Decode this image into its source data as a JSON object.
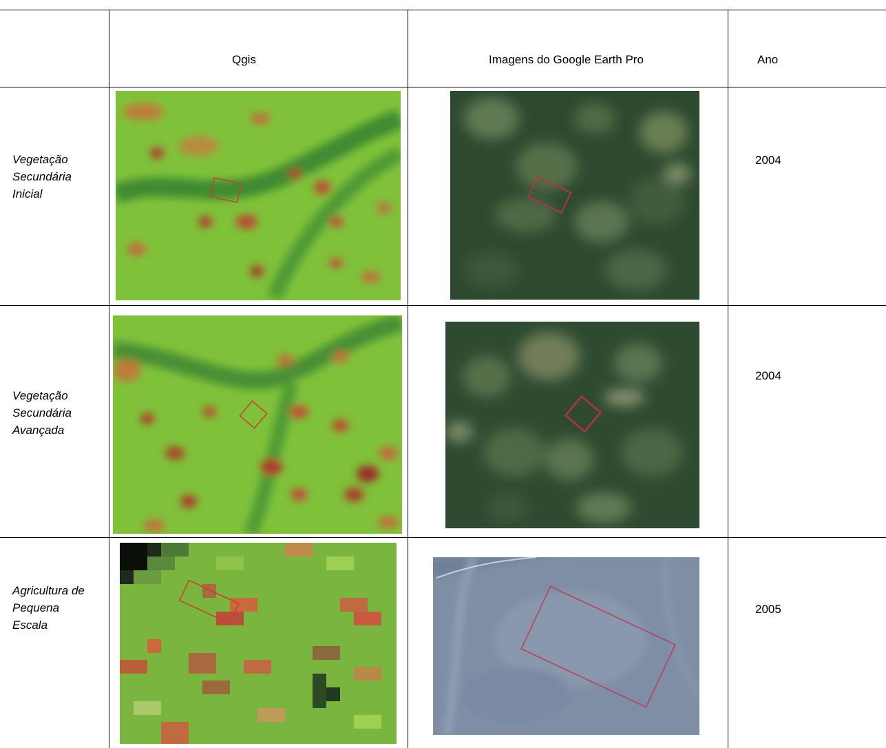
{
  "header": {
    "col_qgis": "Qgis",
    "col_google": "Imagens do Google Earth Pro",
    "col_ano": "Ano"
  },
  "rows": [
    {
      "category_lines": [
        "Vegetação",
        "Secundária",
        "Inicial"
      ],
      "year": "2004"
    },
    {
      "category_lines": [
        "Vegetação",
        "Secundária",
        "Avançada"
      ],
      "year": "2004"
    },
    {
      "category_lines": [
        "Agricultura de",
        "Pequena",
        "Escala"
      ],
      "year": "2005"
    }
  ]
}
